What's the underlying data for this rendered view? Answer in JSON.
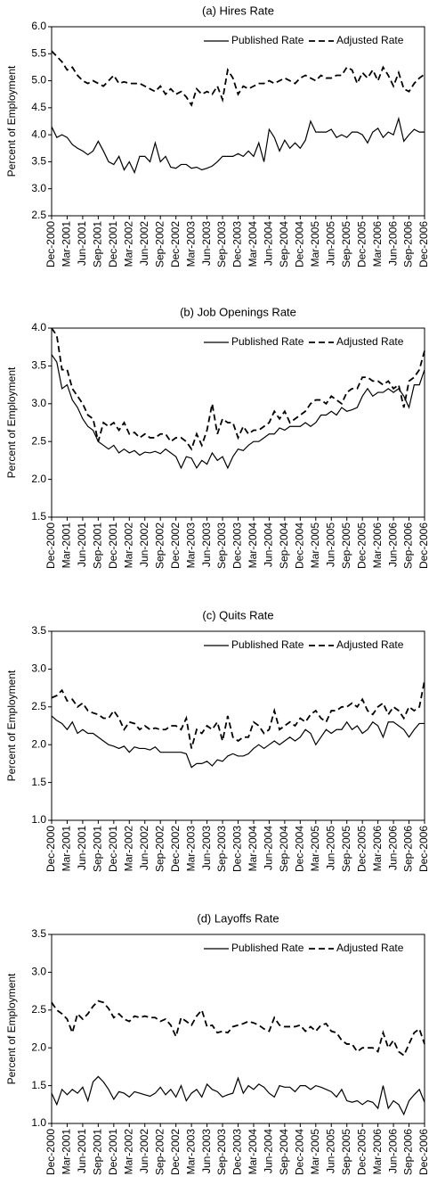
{
  "chart_data": [
    {
      "type": "line",
      "title": "(a) Hires Rate",
      "ylabel": "Percent of Employment",
      "categories": [
        "Dec-2000",
        null,
        null,
        "Mar-2001",
        null,
        null,
        "Jun-2001",
        null,
        null,
        "Sep-2001",
        null,
        null,
        "Dec-2001",
        null,
        null,
        "Mar-2002",
        null,
        null,
        "Jun-2002",
        null,
        null,
        "Sep-2002",
        null,
        null,
        "Dec-2002",
        null,
        null,
        "Mar-2003",
        null,
        null,
        "Jun-2003",
        null,
        null,
        "Sep-2003",
        null,
        null,
        "Dec-2003",
        null,
        null,
        "Mar-2004",
        null,
        null,
        "Jun-2004",
        null,
        null,
        "Sep-2004",
        null,
        null,
        "Dec-2004",
        null,
        null,
        "Mar-2005",
        null,
        null,
        "Jun-2005",
        null,
        null,
        "Sep-2005",
        null,
        null,
        "Dec-2005",
        null,
        null,
        "Mar-2006",
        null,
        null,
        "Jun-2006",
        null,
        null,
        "Sep-2006",
        null,
        null,
        "Dec-2006"
      ],
      "ylim": [
        2.5,
        6.0
      ],
      "yticks": [
        {
          "value": 6.0,
          "label": "6.0"
        },
        5.5,
        {
          "value": 5.0,
          "label": "5.0"
        },
        4.5,
        {
          "value": 4.0,
          "label": "4.0"
        },
        3.5,
        {
          "value": 3.0,
          "label": "3.0"
        },
        2.5
      ],
      "series": [
        {
          "name": "Published Rate",
          "color": "#000000",
          "style": "solid",
          "values": [
            4.15,
            3.95,
            4.0,
            3.95,
            3.82,
            3.75,
            3.7,
            3.63,
            3.7,
            3.88,
            3.7,
            3.5,
            3.45,
            3.6,
            3.35,
            3.5,
            3.3,
            3.6,
            3.6,
            3.5,
            3.85,
            3.5,
            3.6,
            3.4,
            3.38,
            3.45,
            3.45,
            3.38,
            3.4,
            3.35,
            3.38,
            3.42,
            3.5,
            3.6,
            3.6,
            3.6,
            3.65,
            3.6,
            3.7,
            3.6,
            3.85,
            3.5,
            4.1,
            3.95,
            3.7,
            3.9,
            3.75,
            3.85,
            3.75,
            3.9,
            4.25,
            4.05,
            4.05,
            4.05,
            4.1,
            3.95,
            4.0,
            3.95,
            4.05,
            4.05,
            4.0,
            3.85,
            4.05,
            4.12,
            3.95,
            4.05,
            4.0,
            4.3,
            3.88,
            4.0,
            4.1,
            4.05,
            4.05
          ]
        },
        {
          "name": "Adjusted Rate",
          "color": "#000000",
          "style": "dashed",
          "values": [
            5.55,
            5.45,
            5.35,
            5.2,
            5.25,
            5.1,
            5.0,
            4.95,
            5.0,
            4.95,
            4.9,
            5.0,
            5.1,
            4.95,
            4.98,
            4.95,
            4.95,
            4.95,
            4.9,
            4.85,
            4.8,
            4.9,
            4.75,
            4.85,
            4.75,
            4.8,
            4.7,
            4.55,
            4.85,
            4.75,
            4.8,
            4.75,
            4.9,
            4.65,
            5.2,
            5.05,
            4.75,
            4.9,
            4.85,
            4.9,
            4.95,
            4.95,
            5.0,
            4.95,
            5.0,
            5.05,
            5.0,
            4.95,
            5.05,
            5.1,
            5.05,
            5.0,
            5.1,
            5.05,
            5.05,
            5.1,
            5.1,
            5.25,
            5.2,
            4.95,
            5.15,
            5.05,
            5.2,
            5.0,
            5.25,
            5.1,
            4.9,
            5.15,
            4.85,
            4.8,
            4.95,
            5.05,
            5.12
          ]
        }
      ]
    },
    {
      "type": "line",
      "title": "(b) Job Openings Rate",
      "ylabel": "Percent of Employment",
      "categories": [
        "Dec-2000",
        null,
        null,
        "Mar-2001",
        null,
        null,
        "Jun-2001",
        null,
        null,
        "Sep-2001",
        null,
        null,
        "Dec-2001",
        null,
        null,
        "Mar-2002",
        null,
        null,
        "Jun-2002",
        null,
        null,
        "Sep-2002",
        null,
        null,
        "Dec-2002",
        null,
        null,
        "Mar-2003",
        null,
        null,
        "Jun-2003",
        null,
        null,
        "Sep-2003",
        null,
        null,
        "Dec-2003",
        null,
        null,
        "Mar-2004",
        null,
        null,
        "Jun-2004",
        null,
        null,
        "Sep-2004",
        null,
        null,
        "Dec-2004",
        null,
        null,
        "Mar-2005",
        null,
        null,
        "Jun-2005",
        null,
        null,
        "Sep-2005",
        null,
        null,
        "Dec-2005",
        null,
        null,
        "Mar-2006",
        null,
        null,
        "Jun-2006",
        null,
        null,
        "Sep-2006",
        null,
        null,
        "Dec-2006"
      ],
      "ylim": [
        1.5,
        4.0
      ],
      "yticks": [
        {
          "value": 4.0,
          "label": "4.0"
        },
        3.5,
        {
          "value": 3.0,
          "label": "3.0"
        },
        2.5,
        {
          "value": 2.0,
          "label": "2.0"
        },
        1.5
      ],
      "series": [
        {
          "name": "Published Rate",
          "color": "#000000",
          "style": "solid",
          "values": [
            3.65,
            3.55,
            3.2,
            3.25,
            3.05,
            2.95,
            2.8,
            2.7,
            2.65,
            2.5,
            2.45,
            2.4,
            2.45,
            2.35,
            2.4,
            2.35,
            2.38,
            2.32,
            2.36,
            2.35,
            2.37,
            2.34,
            2.4,
            2.35,
            2.3,
            2.15,
            2.3,
            2.28,
            2.15,
            2.25,
            2.2,
            2.35,
            2.25,
            2.3,
            2.15,
            2.3,
            2.4,
            2.38,
            2.45,
            2.5,
            2.5,
            2.55,
            2.6,
            2.6,
            2.68,
            2.65,
            2.7,
            2.7,
            2.7,
            2.75,
            2.7,
            2.75,
            2.85,
            2.85,
            2.9,
            2.85,
            2.95,
            2.9,
            2.92,
            2.95,
            3.1,
            3.2,
            3.1,
            3.15,
            3.15,
            3.2,
            3.15,
            3.2,
            3.1,
            2.95,
            3.25,
            3.25,
            3.45
          ]
        },
        {
          "name": "Adjusted Rate",
          "color": "#000000",
          "style": "dashed",
          "values": [
            4.0,
            3.9,
            3.45,
            3.45,
            3.2,
            3.1,
            3.0,
            2.85,
            2.8,
            2.5,
            2.75,
            2.7,
            2.75,
            2.65,
            2.75,
            2.6,
            2.62,
            2.55,
            2.6,
            2.55,
            2.55,
            2.6,
            2.6,
            2.5,
            2.55,
            2.55,
            2.5,
            2.4,
            2.6,
            2.45,
            2.65,
            3.0,
            2.6,
            2.8,
            2.75,
            2.75,
            2.55,
            2.7,
            2.6,
            2.65,
            2.65,
            2.7,
            2.75,
            2.9,
            2.8,
            2.9,
            2.75,
            2.8,
            2.85,
            2.9,
            3.0,
            3.05,
            3.05,
            3.0,
            3.1,
            3.05,
            3.0,
            3.15,
            3.2,
            3.2,
            3.35,
            3.35,
            3.3,
            3.3,
            3.25,
            3.3,
            3.2,
            3.25,
            2.95,
            3.3,
            3.35,
            3.45,
            3.7
          ]
        }
      ]
    },
    {
      "type": "line",
      "title": "(c) Quits Rate",
      "ylabel": "Percent of Employment",
      "categories": [
        "Dec-2000",
        null,
        null,
        "Mar-2001",
        null,
        null,
        "Jun-2001",
        null,
        null,
        "Sep-2001",
        null,
        null,
        "Dec-2001",
        null,
        null,
        "Mar-2002",
        null,
        null,
        "Jun-2002",
        null,
        null,
        "Sep-2002",
        null,
        null,
        "Dec-2002",
        null,
        null,
        "Mar-2003",
        null,
        null,
        "Jun-2003",
        null,
        null,
        "Sep-2003",
        null,
        null,
        "Dec-2003",
        null,
        null,
        "Mar-2004",
        null,
        null,
        "Jun-2004",
        null,
        null,
        "Sep-2004",
        null,
        null,
        "Dec-2004",
        null,
        null,
        "Mar-2005",
        null,
        null,
        "Jun-2005",
        null,
        null,
        "Sep-2005",
        null,
        null,
        "Dec-2005",
        null,
        null,
        "Mar-2006",
        null,
        null,
        "Jun-2006",
        null,
        null,
        "Sep-2006",
        null,
        null,
        "Dec-2006"
      ],
      "ylim": [
        1.0,
        3.5
      ],
      "yticks": [
        3.5,
        {
          "value": 3.0,
          "label": "3.0"
        },
        2.5,
        {
          "value": 2.0,
          "label": "2.0"
        },
        1.5,
        {
          "value": 1.0,
          "label": "1.0"
        }
      ],
      "series": [
        {
          "name": "Published Rate",
          "color": "#000000",
          "style": "solid",
          "values": [
            2.38,
            2.32,
            2.28,
            2.2,
            2.3,
            2.15,
            2.2,
            2.15,
            2.15,
            2.1,
            2.05,
            2.0,
            1.98,
            1.95,
            1.98,
            1.9,
            1.97,
            1.95,
            1.95,
            1.93,
            1.97,
            1.9,
            1.9,
            1.9,
            1.9,
            1.9,
            1.88,
            1.7,
            1.75,
            1.75,
            1.78,
            1.72,
            1.8,
            1.78,
            1.85,
            1.88,
            1.85,
            1.85,
            1.88,
            1.95,
            2.0,
            1.95,
            2.0,
            2.05,
            2.0,
            2.05,
            2.1,
            2.05,
            2.1,
            2.2,
            2.15,
            2.0,
            2.1,
            2.2,
            2.15,
            2.2,
            2.2,
            2.3,
            2.2,
            2.25,
            2.15,
            2.2,
            2.3,
            2.25,
            2.1,
            2.3,
            2.3,
            2.25,
            2.2,
            2.1,
            2.2,
            2.28,
            2.28
          ]
        },
        {
          "name": "Adjusted Rate",
          "color": "#000000",
          "style": "dashed",
          "values": [
            2.62,
            2.65,
            2.72,
            2.58,
            2.6,
            2.5,
            2.55,
            2.45,
            2.42,
            2.4,
            2.35,
            2.35,
            2.45,
            2.35,
            2.2,
            2.3,
            2.28,
            2.2,
            2.25,
            2.2,
            2.22,
            2.2,
            2.2,
            2.25,
            2.25,
            2.2,
            2.35,
            1.95,
            2.2,
            2.15,
            2.25,
            2.2,
            2.3,
            2.05,
            2.38,
            2.1,
            2.05,
            2.1,
            2.1,
            2.3,
            2.25,
            2.15,
            2.2,
            2.45,
            2.2,
            2.25,
            2.3,
            2.25,
            2.35,
            2.3,
            2.4,
            2.45,
            2.35,
            2.3,
            2.45,
            2.45,
            2.5,
            2.5,
            2.55,
            2.5,
            2.6,
            2.45,
            2.4,
            2.5,
            2.55,
            2.4,
            2.5,
            2.45,
            2.35,
            2.5,
            2.45,
            2.5,
            2.85
          ]
        }
      ]
    },
    {
      "type": "line",
      "title": "(d) Layoffs Rate",
      "ylabel": "Percent of Employment",
      "categories": [
        "Dec-2000",
        null,
        null,
        "Mar-2001",
        null,
        null,
        "Jun-2001",
        null,
        null,
        "Sep-2001",
        null,
        null,
        "Dec-2001",
        null,
        null,
        "Mar-2002",
        null,
        null,
        "Jun-2002",
        null,
        null,
        "Sep-2002",
        null,
        null,
        "Dec-2002",
        null,
        null,
        "Mar-2003",
        null,
        null,
        "Jun-2003",
        null,
        null,
        "Sep-2003",
        null,
        null,
        "Dec-2003",
        null,
        null,
        "Mar-2004",
        null,
        null,
        "Jun-2004",
        null,
        null,
        "Sep-2004",
        null,
        null,
        "Dec-2004",
        null,
        null,
        "Mar-2005",
        null,
        null,
        "Jun-2005",
        null,
        null,
        "Sep-2005",
        null,
        null,
        "Dec-2005",
        null,
        null,
        "Mar-2006",
        null,
        null,
        "Jun-2006",
        null,
        null,
        "Sep-2006",
        null,
        null,
        "Dec-2006"
      ],
      "ylim": [
        1.0,
        3.5
      ],
      "yticks": [
        3.5,
        {
          "value": 3.0,
          "label": "3.0"
        },
        2.5,
        {
          "value": 2.0,
          "label": "2.0"
        },
        1.5,
        {
          "value": 1.0,
          "label": "1.0"
        }
      ],
      "series": [
        {
          "name": "Published Rate",
          "color": "#000000",
          "style": "solid",
          "values": [
            1.4,
            1.25,
            1.45,
            1.38,
            1.45,
            1.4,
            1.48,
            1.3,
            1.55,
            1.62,
            1.55,
            1.45,
            1.32,
            1.42,
            1.4,
            1.35,
            1.42,
            1.4,
            1.38,
            1.36,
            1.4,
            1.48,
            1.38,
            1.45,
            1.35,
            1.5,
            1.3,
            1.4,
            1.45,
            1.35,
            1.52,
            1.45,
            1.42,
            1.35,
            1.38,
            1.4,
            1.6,
            1.4,
            1.5,
            1.45,
            1.52,
            1.48,
            1.4,
            1.35,
            1.5,
            1.48,
            1.48,
            1.42,
            1.5,
            1.5,
            1.45,
            1.5,
            1.48,
            1.45,
            1.42,
            1.35,
            1.45,
            1.3,
            1.28,
            1.3,
            1.25,
            1.3,
            1.28,
            1.2,
            1.5,
            1.2,
            1.3,
            1.25,
            1.12,
            1.3,
            1.38,
            1.45,
            1.28
          ]
        },
        {
          "name": "Adjusted Rate",
          "color": "#000000",
          "style": "dashed",
          "values": [
            2.6,
            2.5,
            2.45,
            2.38,
            2.2,
            2.45,
            2.38,
            2.45,
            2.55,
            2.62,
            2.6,
            2.52,
            2.4,
            2.45,
            2.38,
            2.35,
            2.42,
            2.4,
            2.42,
            2.4,
            2.4,
            2.35,
            2.38,
            2.3,
            2.15,
            2.4,
            2.35,
            2.3,
            2.42,
            2.5,
            2.28,
            2.3,
            2.2,
            2.22,
            2.2,
            2.28,
            2.3,
            2.32,
            2.35,
            2.33,
            2.3,
            2.25,
            2.22,
            2.4,
            2.3,
            2.28,
            2.28,
            2.28,
            2.3,
            2.22,
            2.28,
            2.22,
            2.3,
            2.32,
            2.22,
            2.2,
            2.1,
            2.05,
            2.05,
            1.95,
            2.0,
            2.0,
            2.0,
            1.95,
            2.2,
            2.0,
            2.1,
            1.95,
            1.9,
            2.05,
            2.2,
            2.25,
            2.05
          ]
        }
      ]
    }
  ]
}
